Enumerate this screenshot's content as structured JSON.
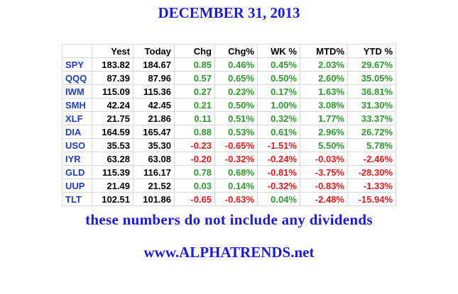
{
  "header": {
    "title": "DECEMBER 31, 2013"
  },
  "table": {
    "headers": [
      "Yest",
      "Today",
      "Chg",
      "Chg%",
      "WK %",
      "MTD%",
      "YTD %"
    ],
    "rows": [
      [
        "SPY",
        "183.82",
        "184.67",
        "0.85",
        "0.46%",
        "0.45%",
        "2.03%",
        "29.67%"
      ],
      [
        "QQQ",
        "87.39",
        "87.96",
        "0.57",
        "0.65%",
        "0.50%",
        "2.60%",
        "35.05%"
      ],
      [
        "IWM",
        "115.09",
        "115.36",
        "0.27",
        "0.23%",
        "0.17%",
        "1.63%",
        "36.81%"
      ],
      [
        "SMH",
        "42.24",
        "42.45",
        "0.21",
        "0.50%",
        "1.00%",
        "3.08%",
        "31.30%"
      ],
      [
        "XLF",
        "21.75",
        "21.86",
        "0.11",
        "0.51%",
        "0.32%",
        "1.77%",
        "33.37%"
      ],
      [
        "DIA",
        "164.59",
        "165.47",
        "0.88",
        "0.53%",
        "0.61%",
        "2.96%",
        "26.72%"
      ],
      [
        "USO",
        "35.53",
        "35.30",
        "-0.23",
        "-0.65%",
        "-1.51%",
        "5.50%",
        "5.78%"
      ],
      [
        "IYR",
        "63.28",
        "63.08",
        "-0.20",
        "-0.32%",
        "-0.24%",
        "-0.03%",
        "-2.46%"
      ],
      [
        "GLD",
        "115.39",
        "116.17",
        "0.78",
        "0.68%",
        "-0.81%",
        "-3.75%",
        "-28.30%"
      ],
      [
        "UUP",
        "21.49",
        "21.52",
        "0.03",
        "0.14%",
        "-0.32%",
        "-0.83%",
        "-1.33%"
      ],
      [
        "TLT",
        "102.51",
        "101.86",
        "-0.65",
        "-0.63%",
        "0.04%",
        "-2.48%",
        "-15.94%"
      ]
    ]
  },
  "footer": {
    "note": "these numbers do not include any dividends",
    "site": "www.ALPHATRENDS.net"
  }
}
